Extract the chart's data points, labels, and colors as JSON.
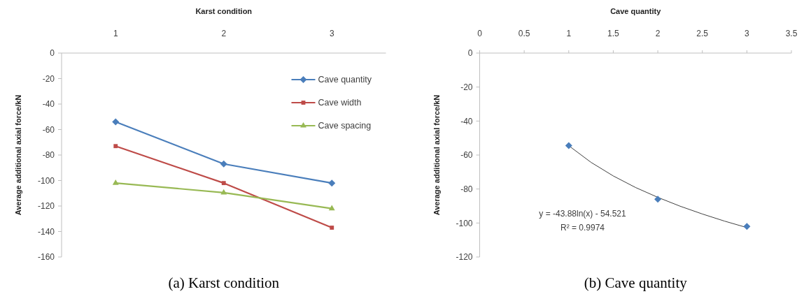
{
  "chart_data": [
    {
      "type": "line",
      "title": "(a) Karst condition",
      "xlabel": "Karst condition",
      "ylabel": "Average additional axial force/kN",
      "categories": [
        "1",
        "2",
        "3"
      ],
      "ylim": [
        -160,
        0
      ],
      "yticks": [
        -160,
        -140,
        -120,
        -100,
        -80,
        -60,
        -40,
        -20,
        0
      ],
      "grid": false,
      "legend": "top right",
      "series": [
        {
          "name": "Cave quantity",
          "color": "#4a7ebb",
          "marker": "diamond",
          "values": [
            -54,
            -87,
            -102
          ]
        },
        {
          "name": "Cave width",
          "color": "#be4b48",
          "marker": "square",
          "values": [
            -73,
            -102,
            -137
          ]
        },
        {
          "name": "Cave spacing",
          "color": "#98b954",
          "marker": "triangle",
          "values": [
            -102,
            -109.5,
            -122
          ]
        }
      ]
    },
    {
      "type": "scatter",
      "title": "(b) Cave quantity",
      "xlabel": "Cave quantity",
      "ylabel": "Average additional axial force/kN",
      "xlim": [
        0,
        3.5
      ],
      "xticks": [
        0,
        0.5,
        1,
        1.5,
        2,
        2.5,
        3,
        3.5
      ],
      "ylim": [
        -120,
        0
      ],
      "yticks": [
        -120,
        -100,
        -80,
        -60,
        -40,
        -20,
        0
      ],
      "grid": false,
      "annotations": [
        "y = -43.88ln(x) - 54.521",
        "R² = 0.9974"
      ],
      "series": [
        {
          "type": "line",
          "color": "#404040",
          "marker": "none",
          "x": [
            1,
            1.25,
            1.5,
            1.75,
            2,
            2.25,
            2.5,
            2.75,
            3
          ],
          "values": [
            -54.5,
            -64.3,
            -72.3,
            -79.1,
            -84.9,
            -90.1,
            -94.7,
            -98.9,
            -102.7
          ]
        },
        {
          "color": "#4a7ebb",
          "marker": "diamond",
          "x": [
            1,
            2,
            3
          ],
          "values": [
            -54.5,
            -86,
            -102
          ]
        }
      ]
    }
  ]
}
